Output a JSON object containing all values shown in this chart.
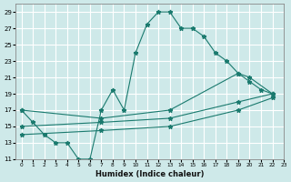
{
  "xlabel": "Humidex (Indice chaleur)",
  "xlim": [
    -0.5,
    23
  ],
  "ylim": [
    11,
    30
  ],
  "yticks": [
    11,
    13,
    15,
    17,
    19,
    21,
    23,
    25,
    27,
    29
  ],
  "xticks": [
    0,
    1,
    2,
    3,
    4,
    5,
    6,
    7,
    8,
    9,
    10,
    11,
    12,
    13,
    14,
    15,
    16,
    17,
    18,
    19,
    20,
    21,
    22,
    23
  ],
  "bg_color": "#cee9e9",
  "grid_color": "#ffffff",
  "line_color": "#1a7a6e",
  "lines": [
    {
      "x": [
        0,
        1,
        2,
        3,
        4,
        5,
        6,
        7,
        8,
        9,
        10,
        11,
        12,
        13,
        14,
        15,
        16,
        17,
        18,
        19,
        20,
        21,
        22
      ],
      "y": [
        17,
        15.5,
        14,
        13,
        13,
        11,
        11,
        17,
        19.5,
        17,
        24,
        27.5,
        29,
        29,
        27,
        27,
        26,
        24,
        23,
        21.5,
        20.5,
        19.5,
        19
      ]
    },
    {
      "x": [
        0,
        7,
        13,
        19,
        20,
        22
      ],
      "y": [
        17,
        16,
        17,
        21.5,
        21,
        19
      ]
    },
    {
      "x": [
        0,
        7,
        13,
        19,
        22
      ],
      "y": [
        15,
        15.5,
        16,
        18,
        19
      ]
    },
    {
      "x": [
        0,
        7,
        13,
        19,
        22
      ],
      "y": [
        14,
        14.5,
        15,
        17,
        18.5
      ]
    }
  ]
}
